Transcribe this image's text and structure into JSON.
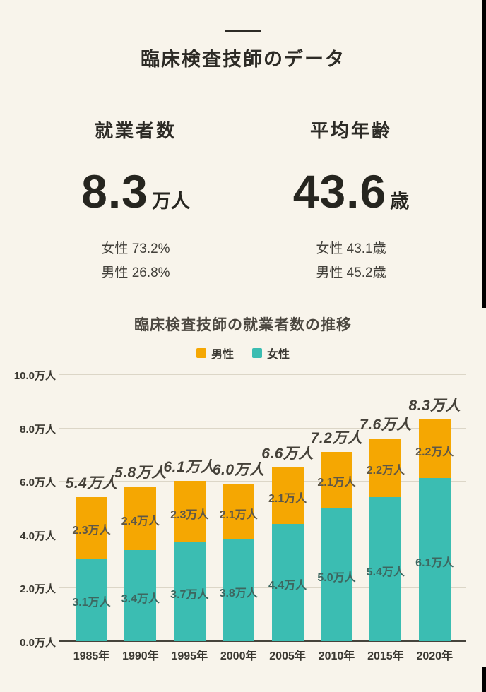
{
  "header": {
    "title": "臨床検査技師のデータ"
  },
  "stats": [
    {
      "label": "就業者数",
      "value": "8.3",
      "unit": "万人",
      "details": [
        "女性 73.2%",
        "男性 26.8%"
      ]
    },
    {
      "label": "平均年齢",
      "value": "43.6",
      "unit": "歳",
      "details": [
        "女性 43.1歳",
        "男性 45.2歳"
      ]
    }
  ],
  "colors": {
    "male": "#f5a702",
    "female": "#3bbdb2",
    "background": "#f8f4eb"
  },
  "chart_data": {
    "type": "bar",
    "stacked": true,
    "title": "臨床検査技師の就業者数の推移",
    "categories": [
      "1985年",
      "1990年",
      "1995年",
      "2000年",
      "2005年",
      "2010年",
      "2015年",
      "2020年"
    ],
    "series": [
      {
        "name": "男性",
        "color": "#f5a702",
        "values": [
          2.3,
          2.4,
          2.3,
          2.1,
          2.1,
          2.1,
          2.2,
          2.2
        ],
        "labels": [
          "2.3万人",
          "2.4万人",
          "2.3万人",
          "2.1万人",
          "2.1万人",
          "2.1万人",
          "2.2万人",
          "2.2万人"
        ]
      },
      {
        "name": "女性",
        "color": "#3bbdb2",
        "values": [
          3.1,
          3.4,
          3.7,
          3.8,
          4.4,
          5.0,
          5.4,
          6.1
        ],
        "labels": [
          "3.1万人",
          "3.4万人",
          "3.7万人",
          "3.8万人",
          "4.4万人",
          "5.0万人",
          "5.4万人",
          "6.1万人"
        ]
      }
    ],
    "totals": [
      5.4,
      5.8,
      6.1,
      6.0,
      6.6,
      7.2,
      7.6,
      8.3
    ],
    "totals_display": [
      "5.4万人",
      "5.8万人",
      "6.1万人",
      "6.0万人",
      "6.6万人",
      "7.2万人",
      "7.6万人",
      "8.3万人"
    ],
    "y_ticks": [
      {
        "value": 10,
        "label": "10.0万人"
      },
      {
        "value": 8,
        "label": "8.0万人"
      },
      {
        "value": 6,
        "label": "6.0万人"
      },
      {
        "value": 4,
        "label": "4.0万人"
      },
      {
        "value": 2,
        "label": "2.0万人"
      },
      {
        "value": 0,
        "label": "0.0万人"
      }
    ],
    "ylim": [
      0,
      10
    ],
    "grid": true,
    "legend_position": "top"
  }
}
